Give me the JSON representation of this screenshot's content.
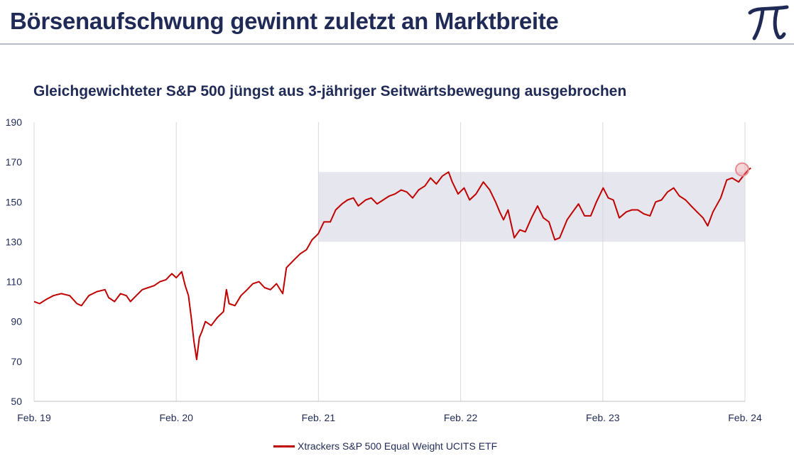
{
  "header": {
    "title": "Börsenaufschwung gewinnt zuletzt an Marktbreite",
    "logo_text": "π"
  },
  "colors": {
    "title": "#1f2a56",
    "series": "#c00000",
    "band": "#e6e6ee",
    "grid": "#d9d9d9",
    "rule": "#b8bcc8",
    "highlight": "#e88a90"
  },
  "chart_data": {
    "type": "line",
    "title": "Gleichgewichteter S&P 500 jüngst aus 3-jähriger Seitwärtsbewegung ausgebrochen",
    "xlabel": "",
    "ylabel": "",
    "ylim": [
      50,
      190
    ],
    "yticks": [
      50,
      70,
      90,
      110,
      130,
      150,
      170,
      190
    ],
    "xlim": [
      "2019-02",
      "2024-02"
    ],
    "xticks": [
      "Feb. 19",
      "Feb. 20",
      "Feb. 21",
      "Feb. 22",
      "Feb. 23",
      "Feb. 24"
    ],
    "grid": "vertical",
    "legend_position": "bottom",
    "band": {
      "x_start": "2021-02",
      "x_end": "2024-02",
      "y_low": 130,
      "y_high": 165
    },
    "highlight_point": {
      "x": "2024-02",
      "y": 167
    },
    "series": [
      {
        "name": "Xtrackers S&P 500 Equal Weight UCITS ETF",
        "points": [
          [
            "2019-02-01",
            100
          ],
          [
            "2019-02-15",
            99
          ],
          [
            "2019-03-01",
            101
          ],
          [
            "2019-03-20",
            103
          ],
          [
            "2019-04-10",
            104
          ],
          [
            "2019-05-01",
            103
          ],
          [
            "2019-05-20",
            99
          ],
          [
            "2019-06-01",
            98
          ],
          [
            "2019-06-20",
            103
          ],
          [
            "2019-07-10",
            105
          ],
          [
            "2019-07-31",
            106
          ],
          [
            "2019-08-10",
            102
          ],
          [
            "2019-08-25",
            100
          ],
          [
            "2019-09-10",
            104
          ],
          [
            "2019-09-25",
            103
          ],
          [
            "2019-10-05",
            100
          ],
          [
            "2019-10-20",
            103
          ],
          [
            "2019-11-05",
            106
          ],
          [
            "2019-11-20",
            107
          ],
          [
            "2019-12-05",
            108
          ],
          [
            "2019-12-20",
            110
          ],
          [
            "2020-01-05",
            111
          ],
          [
            "2020-01-20",
            114
          ],
          [
            "2020-02-01",
            112
          ],
          [
            "2020-02-15",
            115
          ],
          [
            "2020-02-24",
            108
          ],
          [
            "2020-03-02",
            103
          ],
          [
            "2020-03-09",
            92
          ],
          [
            "2020-03-16",
            80
          ],
          [
            "2020-03-23",
            71
          ],
          [
            "2020-03-30",
            82
          ],
          [
            "2020-04-06",
            85
          ],
          [
            "2020-04-15",
            90
          ],
          [
            "2020-04-30",
            88
          ],
          [
            "2020-05-15",
            92
          ],
          [
            "2020-05-31",
            95
          ],
          [
            "2020-06-08",
            106
          ],
          [
            "2020-06-15",
            99
          ],
          [
            "2020-06-30",
            98
          ],
          [
            "2020-07-15",
            103
          ],
          [
            "2020-07-31",
            106
          ],
          [
            "2020-08-15",
            109
          ],
          [
            "2020-08-31",
            110
          ],
          [
            "2020-09-15",
            107
          ],
          [
            "2020-09-30",
            106
          ],
          [
            "2020-10-15",
            109
          ],
          [
            "2020-10-31",
            104
          ],
          [
            "2020-11-10",
            117
          ],
          [
            "2020-11-30",
            121
          ],
          [
            "2020-12-15",
            124
          ],
          [
            "2020-12-31",
            126
          ],
          [
            "2021-01-15",
            131
          ],
          [
            "2021-01-31",
            134
          ],
          [
            "2021-02-15",
            140
          ],
          [
            "2021-03-01",
            140
          ],
          [
            "2021-03-15",
            146
          ],
          [
            "2021-03-31",
            149
          ],
          [
            "2021-04-15",
            151
          ],
          [
            "2021-04-30",
            152
          ],
          [
            "2021-05-12",
            148
          ],
          [
            "2021-05-31",
            151
          ],
          [
            "2021-06-15",
            152
          ],
          [
            "2021-06-30",
            149
          ],
          [
            "2021-07-15",
            151
          ],
          [
            "2021-07-31",
            153
          ],
          [
            "2021-08-15",
            154
          ],
          [
            "2021-08-31",
            156
          ],
          [
            "2021-09-15",
            155
          ],
          [
            "2021-09-30",
            152
          ],
          [
            "2021-10-15",
            156
          ],
          [
            "2021-10-31",
            158
          ],
          [
            "2021-11-15",
            162
          ],
          [
            "2021-11-30",
            159
          ],
          [
            "2021-12-15",
            163
          ],
          [
            "2021-12-31",
            165
          ],
          [
            "2022-01-10",
            160
          ],
          [
            "2022-01-25",
            154
          ],
          [
            "2022-02-10",
            157
          ],
          [
            "2022-02-24",
            151
          ],
          [
            "2022-03-10",
            154
          ],
          [
            "2022-03-29",
            160
          ],
          [
            "2022-04-15",
            156
          ],
          [
            "2022-04-30",
            150
          ],
          [
            "2022-05-10",
            145
          ],
          [
            "2022-05-20",
            141
          ],
          [
            "2022-06-01",
            146
          ],
          [
            "2022-06-17",
            132
          ],
          [
            "2022-07-01",
            136
          ],
          [
            "2022-07-15",
            135
          ],
          [
            "2022-07-31",
            142
          ],
          [
            "2022-08-16",
            148
          ],
          [
            "2022-08-31",
            142
          ],
          [
            "2022-09-15",
            140
          ],
          [
            "2022-09-30",
            131
          ],
          [
            "2022-10-12",
            132
          ],
          [
            "2022-10-31",
            141
          ],
          [
            "2022-11-15",
            145
          ],
          [
            "2022-11-30",
            149
          ],
          [
            "2022-12-15",
            143
          ],
          [
            "2022-12-31",
            143
          ],
          [
            "2023-01-15",
            150
          ],
          [
            "2023-02-02",
            157
          ],
          [
            "2023-02-15",
            152
          ],
          [
            "2023-02-28",
            151
          ],
          [
            "2023-03-13",
            142
          ],
          [
            "2023-03-31",
            145
          ],
          [
            "2023-04-15",
            146
          ],
          [
            "2023-04-30",
            146
          ],
          [
            "2023-05-15",
            144
          ],
          [
            "2023-05-31",
            143
          ],
          [
            "2023-06-15",
            150
          ],
          [
            "2023-06-30",
            151
          ],
          [
            "2023-07-15",
            155
          ],
          [
            "2023-07-31",
            157
          ],
          [
            "2023-08-15",
            153
          ],
          [
            "2023-08-31",
            151
          ],
          [
            "2023-09-15",
            148
          ],
          [
            "2023-09-30",
            145
          ],
          [
            "2023-10-15",
            142
          ],
          [
            "2023-10-27",
            138
          ],
          [
            "2023-11-10",
            145
          ],
          [
            "2023-11-30",
            152
          ],
          [
            "2023-12-15",
            161
          ],
          [
            "2023-12-29",
            162
          ],
          [
            "2024-01-15",
            160
          ],
          [
            "2024-01-31",
            164
          ],
          [
            "2024-02-09",
            166
          ],
          [
            "2024-02-16",
            167
          ]
        ]
      }
    ]
  }
}
